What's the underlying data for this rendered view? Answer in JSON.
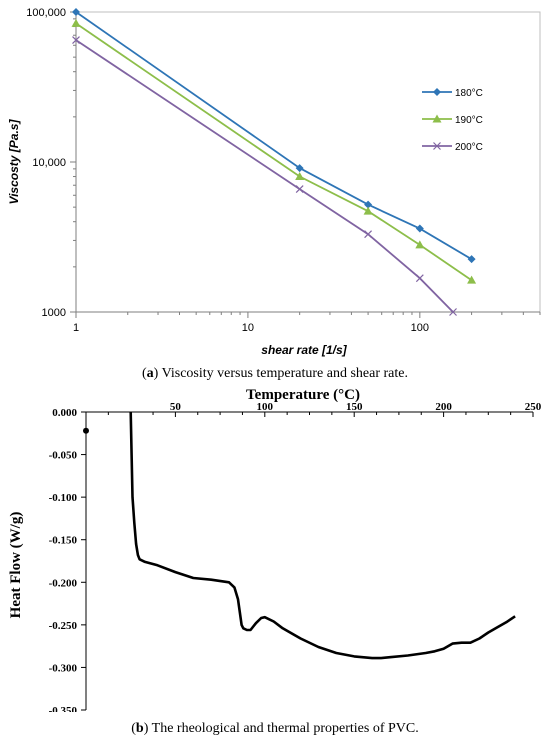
{
  "chart_data": [
    {
      "type": "line",
      "xscale": "log",
      "yscale": "log",
      "xlabel": "shear rate [1/s]",
      "ylabel": "Viscosty [Pa.s]",
      "xlim": [
        1,
        500
      ],
      "ylim": [
        1000,
        100000
      ],
      "xticks": [
        1,
        10,
        100
      ],
      "xtick_labels": [
        "1",
        "10",
        "100"
      ],
      "yticks": [
        1000,
        10000,
        100000
      ],
      "ytick_labels": [
        "1000",
        "10,000",
        "100,000"
      ],
      "grid": false,
      "legend": "right",
      "series": [
        {
          "name": "180°C",
          "color": "#2E75B6",
          "marker": "diamond",
          "x": [
            1,
            20,
            50,
            100,
            200
          ],
          "y": [
            100000,
            9100,
            5200,
            3600,
            2250
          ]
        },
        {
          "name": "190°C",
          "color": "#8DBE4A",
          "marker": "triangle",
          "x": [
            1,
            20,
            50,
            100,
            200
          ],
          "y": [
            84000,
            8000,
            4700,
            2800,
            1630
          ]
        },
        {
          "name": "200°C",
          "color": "#8064A2",
          "marker": "x",
          "x": [
            1,
            20,
            50,
            100,
            156
          ],
          "y": [
            65000,
            6600,
            3300,
            1680,
            1000
          ]
        }
      ]
    },
    {
      "type": "line",
      "title": "Temperature (°C)",
      "ylabel": "Heat Flow (W/g)",
      "xlim": [
        0,
        250
      ],
      "ylim": [
        -0.35,
        0
      ],
      "xticks": [
        50,
        100,
        150,
        200,
        250
      ],
      "yticks": [
        0,
        -0.05,
        -0.1,
        -0.15,
        -0.2,
        -0.25,
        -0.3,
        -0.35
      ],
      "ytick_labels": [
        "0.000",
        "-0.050",
        "-0.100",
        "-0.150",
        "-0.200",
        "-0.250",
        "-0.300",
        "-0.350"
      ],
      "grid": false,
      "series": [
        {
          "color": "#000000",
          "x": [
            25,
            25.5,
            26,
            27,
            28,
            29,
            30,
            33,
            40,
            50,
            60,
            70,
            80,
            83,
            85,
            86,
            87,
            88,
            90,
            92,
            95,
            98,
            100,
            105,
            110,
            120,
            130,
            140,
            150,
            160,
            165,
            170,
            180,
            190,
            195,
            200,
            205,
            210,
            215,
            220,
            225,
            230,
            235,
            240
          ],
          "y": [
            0.0,
            -0.05,
            -0.1,
            -0.13,
            -0.155,
            -0.168,
            -0.173,
            -0.176,
            -0.18,
            -0.188,
            -0.195,
            -0.197,
            -0.2,
            -0.206,
            -0.22,
            -0.235,
            -0.25,
            -0.254,
            -0.256,
            -0.256,
            -0.248,
            -0.242,
            -0.241,
            -0.246,
            -0.254,
            -0.266,
            -0.276,
            -0.283,
            -0.287,
            -0.289,
            -0.289,
            -0.288,
            -0.286,
            -0.283,
            -0.281,
            -0.278,
            -0.272,
            -0.271,
            -0.271,
            -0.266,
            -0.259,
            -0.253,
            -0.247,
            -0.24
          ]
        }
      ]
    }
  ],
  "captions": {
    "a_letter": "a",
    "a_text": " Viscosity versus temperature and shear rate.",
    "b_letter": "b",
    "b_text": " The rheological and thermal properties of PVC."
  }
}
